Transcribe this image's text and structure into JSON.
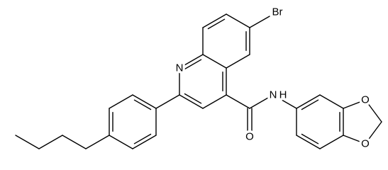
{
  "atoms": {
    "bromine": "Br",
    "ring_nitrogen": "N",
    "amide_nitrogen": "N",
    "amide_hydrogen": "H",
    "carbonyl_oxygen": "O",
    "dioxole_oxygen_top": "O",
    "dioxole_oxygen_bottom": "O"
  }
}
